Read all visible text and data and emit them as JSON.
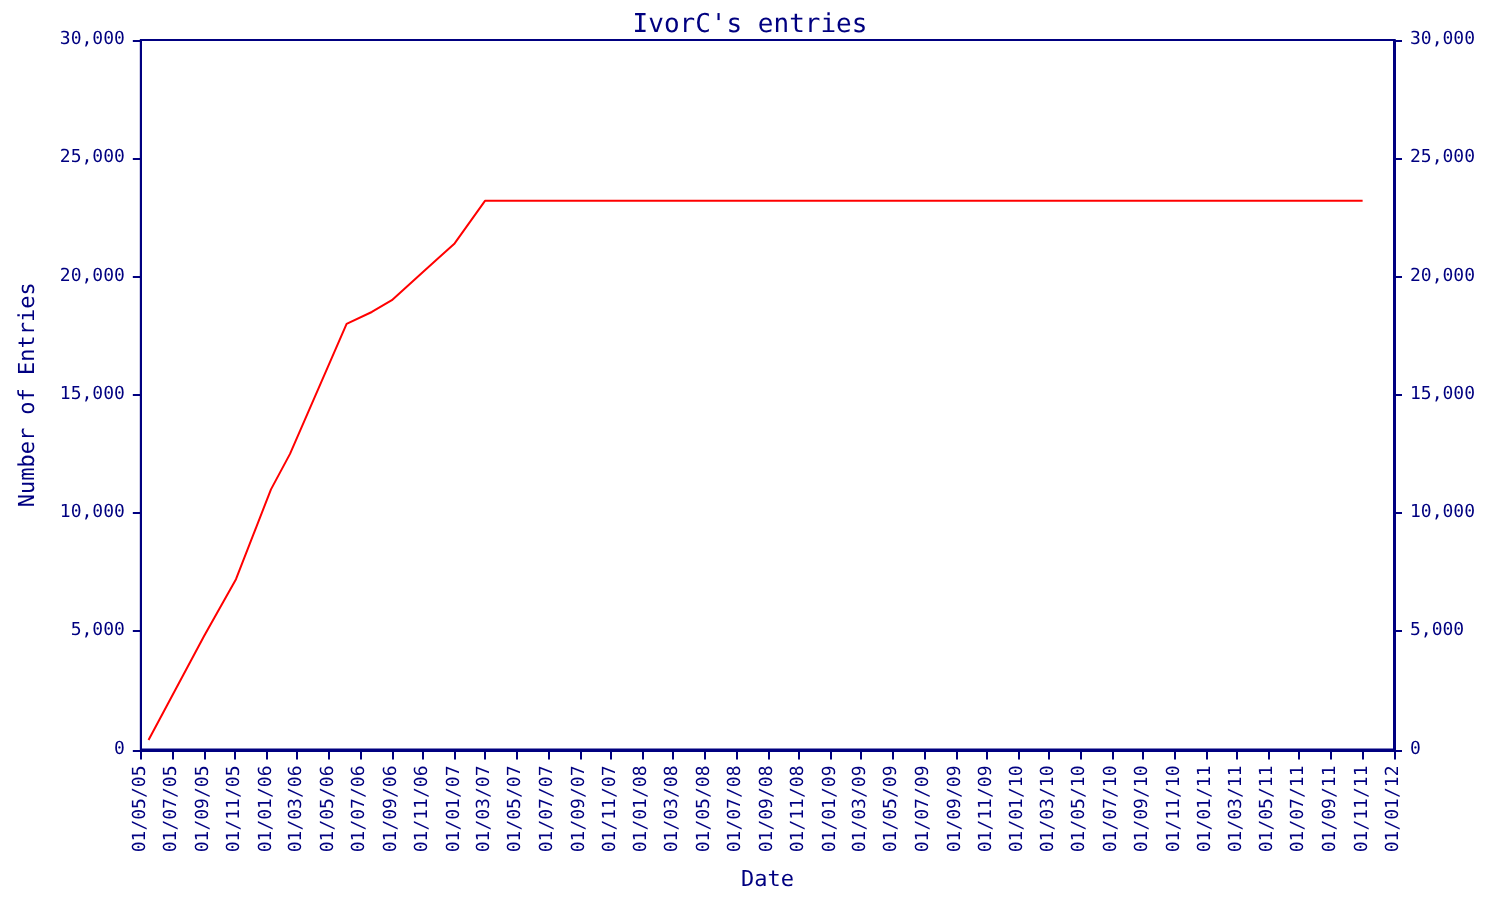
{
  "chart_data": {
    "type": "line",
    "title": "IvorC's entries",
    "xlabel": "Date",
    "ylabel": "Number of Entries",
    "x": [
      "2005-05-16",
      "2005-09-01",
      "2005-11-02",
      "2006-01-09",
      "2006-02-15",
      "2006-06-05",
      "2006-07-24",
      "2006-09-01",
      "2006-11-01",
      "2007-01-01",
      "2007-03-01",
      "2011-11-01"
    ],
    "series": [
      {
        "color": "#ff0000",
        "values": [
          400,
          4800,
          7200,
          11000,
          12500,
          18000,
          18500,
          19000,
          20200,
          21400,
          23200,
          23200
        ]
      }
    ],
    "xlim": [
      "2005-05-01",
      "2012-01-01"
    ],
    "xticks": [
      {
        "value": "2005-05-01",
        "label": "01/05/05"
      },
      {
        "value": "2005-07-01",
        "label": "01/07/05"
      },
      {
        "value": "2005-09-01",
        "label": "01/09/05"
      },
      {
        "value": "2005-11-01",
        "label": "01/11/05"
      },
      {
        "value": "2006-01-01",
        "label": "01/01/06"
      },
      {
        "value": "2006-03-01",
        "label": "01/03/06"
      },
      {
        "value": "2006-05-01",
        "label": "01/05/06"
      },
      {
        "value": "2006-07-01",
        "label": "01/07/06"
      },
      {
        "value": "2006-09-01",
        "label": "01/09/06"
      },
      {
        "value": "2006-11-01",
        "label": "01/11/06"
      },
      {
        "value": "2007-01-01",
        "label": "01/01/07"
      },
      {
        "value": "2007-03-01",
        "label": "01/03/07"
      },
      {
        "value": "2007-05-01",
        "label": "01/05/07"
      },
      {
        "value": "2007-07-01",
        "label": "01/07/07"
      },
      {
        "value": "2007-09-01",
        "label": "01/09/07"
      },
      {
        "value": "2007-11-01",
        "label": "01/11/07"
      },
      {
        "value": "2008-01-01",
        "label": "01/01/08"
      },
      {
        "value": "2008-03-01",
        "label": "01/03/08"
      },
      {
        "value": "2008-05-01",
        "label": "01/05/08"
      },
      {
        "value": "2008-07-01",
        "label": "01/07/08"
      },
      {
        "value": "2008-09-01",
        "label": "01/09/08"
      },
      {
        "value": "2008-11-01",
        "label": "01/11/08"
      },
      {
        "value": "2009-01-01",
        "label": "01/01/09"
      },
      {
        "value": "2009-03-01",
        "label": "01/03/09"
      },
      {
        "value": "2009-05-01",
        "label": "01/05/09"
      },
      {
        "value": "2009-07-01",
        "label": "01/07/09"
      },
      {
        "value": "2009-09-01",
        "label": "01/09/09"
      },
      {
        "value": "2009-11-01",
        "label": "01/11/09"
      },
      {
        "value": "2010-01-01",
        "label": "01/01/10"
      },
      {
        "value": "2010-03-01",
        "label": "01/03/10"
      },
      {
        "value": "2010-05-01",
        "label": "01/05/10"
      },
      {
        "value": "2010-07-01",
        "label": "01/07/10"
      },
      {
        "value": "2010-09-01",
        "label": "01/09/10"
      },
      {
        "value": "2010-11-01",
        "label": "01/11/10"
      },
      {
        "value": "2011-01-01",
        "label": "01/01/11"
      },
      {
        "value": "2011-03-01",
        "label": "01/03/11"
      },
      {
        "value": "2011-05-01",
        "label": "01/05/11"
      },
      {
        "value": "2011-07-01",
        "label": "01/07/11"
      },
      {
        "value": "2011-09-01",
        "label": "01/09/11"
      },
      {
        "value": "2011-11-01",
        "label": "01/11/11"
      },
      {
        "value": "2012-01-01",
        "label": "01/01/12"
      }
    ],
    "ylim": [
      0,
      30000
    ],
    "yticks": [
      0,
      {
        "value": 5000,
        "label": "5,000"
      },
      {
        "value": 10000,
        "label": "10,000"
      },
      {
        "value": 15000,
        "label": "15,000"
      },
      {
        "value": 20000,
        "label": "20,000"
      },
      {
        "value": 25000,
        "label": "25,000"
      },
      {
        "value": 30000,
        "label": "30,000"
      }
    ],
    "y2lim": [
      0,
      30000
    ],
    "y2ticks": [
      0,
      {
        "value": 5000,
        "label": "5,000"
      },
      {
        "value": 10000,
        "label": "10,000"
      },
      {
        "value": 15000,
        "label": "15,000"
      },
      {
        "value": 20000,
        "label": "20,000"
      },
      {
        "value": 25000,
        "label": "25,000"
      },
      {
        "value": 30000,
        "label": "30,000"
      }
    ],
    "marker": "none",
    "line_style": "solid"
  }
}
